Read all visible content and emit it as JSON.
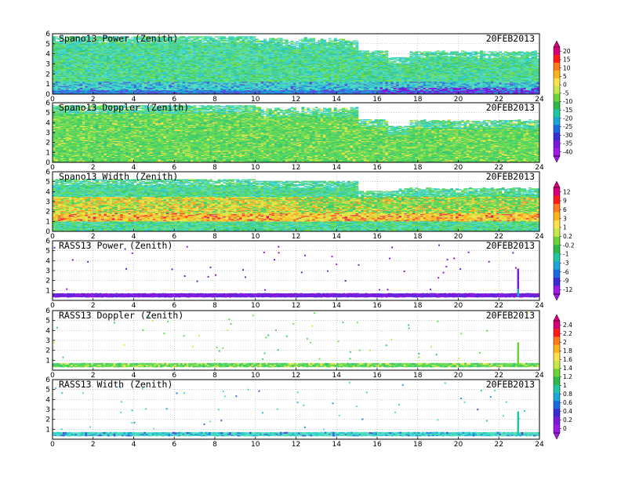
{
  "figure": {
    "date": "20FEB2013"
  },
  "chart_data": [
    {
      "type": "heatmap",
      "title": "Spano13 Power (Zenith)",
      "date": "20FEB2013",
      "xlim": [
        0,
        24
      ],
      "ylim": [
        0,
        6
      ],
      "xticks": [
        "0",
        "2",
        "4",
        "6",
        "8",
        "10",
        "12",
        "14",
        "16",
        "18",
        "20",
        "22",
        "24"
      ],
      "yticks": [
        "0",
        "1",
        "2",
        "3",
        "4",
        "5",
        "6"
      ],
      "colorbar_group": "power"
    },
    {
      "type": "heatmap",
      "title": "Spano13 Doppler (Zenith)",
      "date": "20FEB2013",
      "xlim": [
        0,
        24
      ],
      "ylim": [
        0,
        6
      ],
      "xticks": [
        "0",
        "2",
        "4",
        "6",
        "8",
        "10",
        "12",
        "14",
        "16",
        "18",
        "20",
        "22",
        "24"
      ],
      "yticks": [
        "0",
        "1",
        "2",
        "3",
        "4",
        "5",
        "6"
      ],
      "colorbar_group": "power"
    },
    {
      "type": "heatmap",
      "title": "Spano13 Width (Zenith)",
      "date": "20FEB2013",
      "xlim": [
        0,
        24
      ],
      "ylim": [
        0,
        6
      ],
      "xticks": [
        "0",
        "2",
        "4",
        "6",
        "8",
        "10",
        "12",
        "14",
        "16",
        "18",
        "20",
        "22",
        "24"
      ],
      "yticks": [
        "0",
        "1",
        "2",
        "3",
        "4",
        "5",
        "6"
      ],
      "colorbar_group": "width"
    },
    {
      "type": "heatmap",
      "title": "RASS13 Power (Zenith)",
      "date": "20FEB2013",
      "xlim": [
        0,
        24
      ],
      "ylim": [
        0,
        6
      ],
      "xticks": [
        "0",
        "2",
        "4",
        "6",
        "8",
        "10",
        "12",
        "14",
        "16",
        "18",
        "20",
        "22",
        "24"
      ],
      "yticks": [
        "1",
        "2",
        "3",
        "4",
        "5",
        "6"
      ],
      "colorbar_group": "width"
    },
    {
      "type": "heatmap",
      "title": "RASS13 Doppler (Zenith)",
      "date": "20FEB2013",
      "xlim": [
        0,
        24
      ],
      "ylim": [
        0,
        6
      ],
      "xticks": [
        "0",
        "2",
        "4",
        "6",
        "8",
        "10",
        "12",
        "14",
        "16",
        "18",
        "20",
        "22",
        "24"
      ],
      "yticks": [
        "1",
        "2",
        "3",
        "4",
        "5",
        "6"
      ],
      "colorbar_group": "rass"
    },
    {
      "type": "heatmap",
      "title": "RASS13 Width (Zenith)",
      "date": "20FEB2013",
      "xlim": [
        0,
        24
      ],
      "ylim": [
        0,
        6
      ],
      "xticks": [
        "0",
        "2",
        "4",
        "6",
        "8",
        "10",
        "12",
        "14",
        "16",
        "18",
        "20",
        "22",
        "24"
      ],
      "yticks": [
        "1",
        "2",
        "3",
        "4",
        "5",
        "6"
      ],
      "colorbar_group": "rass"
    }
  ],
  "colorbars": [
    {
      "name": "power",
      "labels": [
        "20",
        "15",
        "10",
        "5",
        "0",
        "-5",
        "-10",
        "-15",
        "-20",
        "-25",
        "-30",
        "-35",
        "-40"
      ],
      "colors": [
        "#d8007a",
        "#ff1a1a",
        "#ff7a1a",
        "#ffb31a",
        "#ffe14a",
        "#c8e84a",
        "#6ad43a",
        "#2fb84a",
        "#1fc8a0",
        "#1aa8d8",
        "#1a6ae0",
        "#3a2ad8",
        "#7a1ad8",
        "#a01ae8"
      ]
    },
    {
      "name": "width",
      "labels": [
        "12",
        "9",
        "6",
        "3",
        "1",
        "0.2",
        "-0.2",
        "-1",
        "-3",
        "-6",
        "-9",
        "-12"
      ],
      "colors": [
        "#d8007a",
        "#ff1a1a",
        "#ff7a1a",
        "#ffb31a",
        "#ffe14a",
        "#c8e84a",
        "#6ad43a",
        "#2fb84a",
        "#1fc8a0",
        "#1aa8d8",
        "#1a6ae0",
        "#3a2ad8",
        "#a01ae8"
      ]
    },
    {
      "name": "rass",
      "labels": [
        "2.4",
        "2.2",
        "2",
        "1.8",
        "1.6",
        "1.4",
        "1.2",
        "1",
        "0.8",
        "0.6",
        "0.4",
        "0.2",
        "0"
      ],
      "colors": [
        "#d8007a",
        "#ff1a1a",
        "#ff7a1a",
        "#ffb31a",
        "#ffe14a",
        "#c8e84a",
        "#6ad43a",
        "#2fb84a",
        "#1fc8a0",
        "#1aa8d8",
        "#1a6ae0",
        "#3a2ad8",
        "#7a1ad8",
        "#a01ae8"
      ]
    }
  ]
}
